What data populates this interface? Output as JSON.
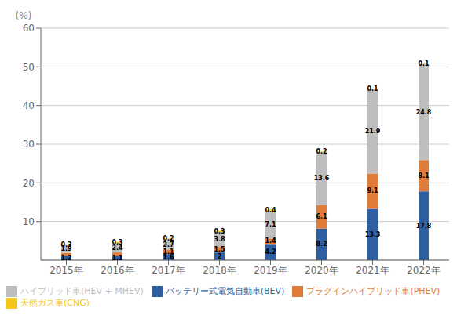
{
  "chart_data": {
    "type": "bar",
    "stacked": true,
    "data_labels": true,
    "grid": true,
    "legend": "bottom",
    "y_label": "(%)",
    "categories": [
      "2015年",
      "2016年",
      "2017年",
      "2018年",
      "2019年",
      "2020年",
      "2021年",
      "2022年"
    ],
    "series": [
      {
        "name": "バッテリー式電気自動車(BEV)",
        "color": "#2E5FA3",
        "values": [
          1.2,
          1.1,
          1.6,
          2.0,
          4.2,
          8.2,
          13.3,
          17.8
        ]
      },
      {
        "name": "プラグインハイブリッド車(PHEV)",
        "color": "#E07B39",
        "values": [
          0.7,
          0.9,
          1.1,
          1.5,
          1.4,
          6.1,
          9.1,
          8.1
        ],
        "value_labels": [
          null,
          null,
          "1.1",
          "1.5",
          "1.4",
          "6.1",
          "9.1",
          "8.1"
        ]
      },
      {
        "name": "ハイブリッド車(HEV + MHEV)",
        "color": "#BEBEBE",
        "values": [
          1.9,
          2.4,
          2.7,
          3.8,
          7.1,
          13.6,
          21.9,
          24.8
        ]
      },
      {
        "name": "天然ガス車(CNG)",
        "color": "#F5C518",
        "values": [
          0.3,
          0.3,
          0.2,
          0.3,
          0.4,
          0.2,
          0.1,
          0.1
        ]
      }
    ],
    "ylim": [
      0,
      60
    ],
    "yticks": [
      10,
      20,
      30,
      40,
      50,
      60
    ]
  }
}
